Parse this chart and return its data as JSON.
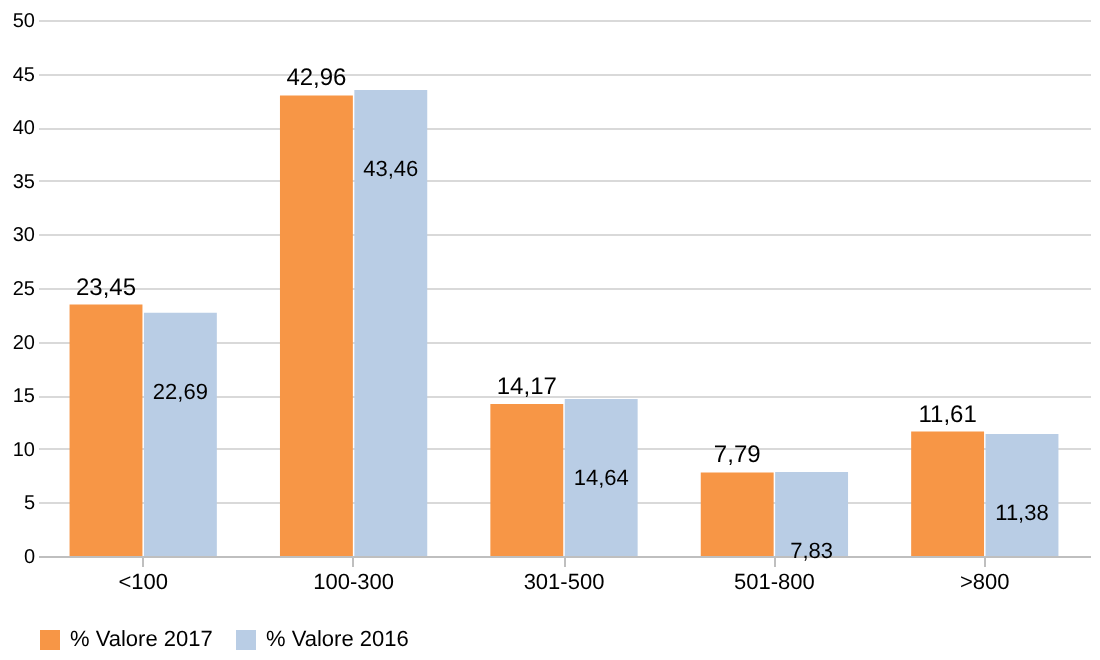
{
  "chart_data": {
    "type": "bar",
    "categories": [
      "<100",
      "100-300",
      "301-500",
      "501-800",
      ">800"
    ],
    "series": [
      {
        "name": "% Valore 2017",
        "color": "#f79646",
        "values": [
          23.45,
          42.96,
          14.17,
          7.79,
          11.61
        ],
        "value_labels": [
          "23,45",
          "42,96",
          "14,17",
          "7,79",
          "11,61"
        ]
      },
      {
        "name": "% Valore 2016",
        "color": "#b9cde5",
        "values": [
          22.69,
          43.46,
          14.64,
          7.83,
          11.38
        ],
        "value_labels": [
          "22,69",
          "43,46",
          "14,64",
          "7,83",
          "11,38"
        ]
      }
    ],
    "ylim": [
      0,
      50
    ],
    "yticks": [
      0,
      5,
      10,
      15,
      20,
      25,
      30,
      35,
      40,
      45,
      50
    ],
    "grid": "y",
    "legend": "bottom"
  }
}
